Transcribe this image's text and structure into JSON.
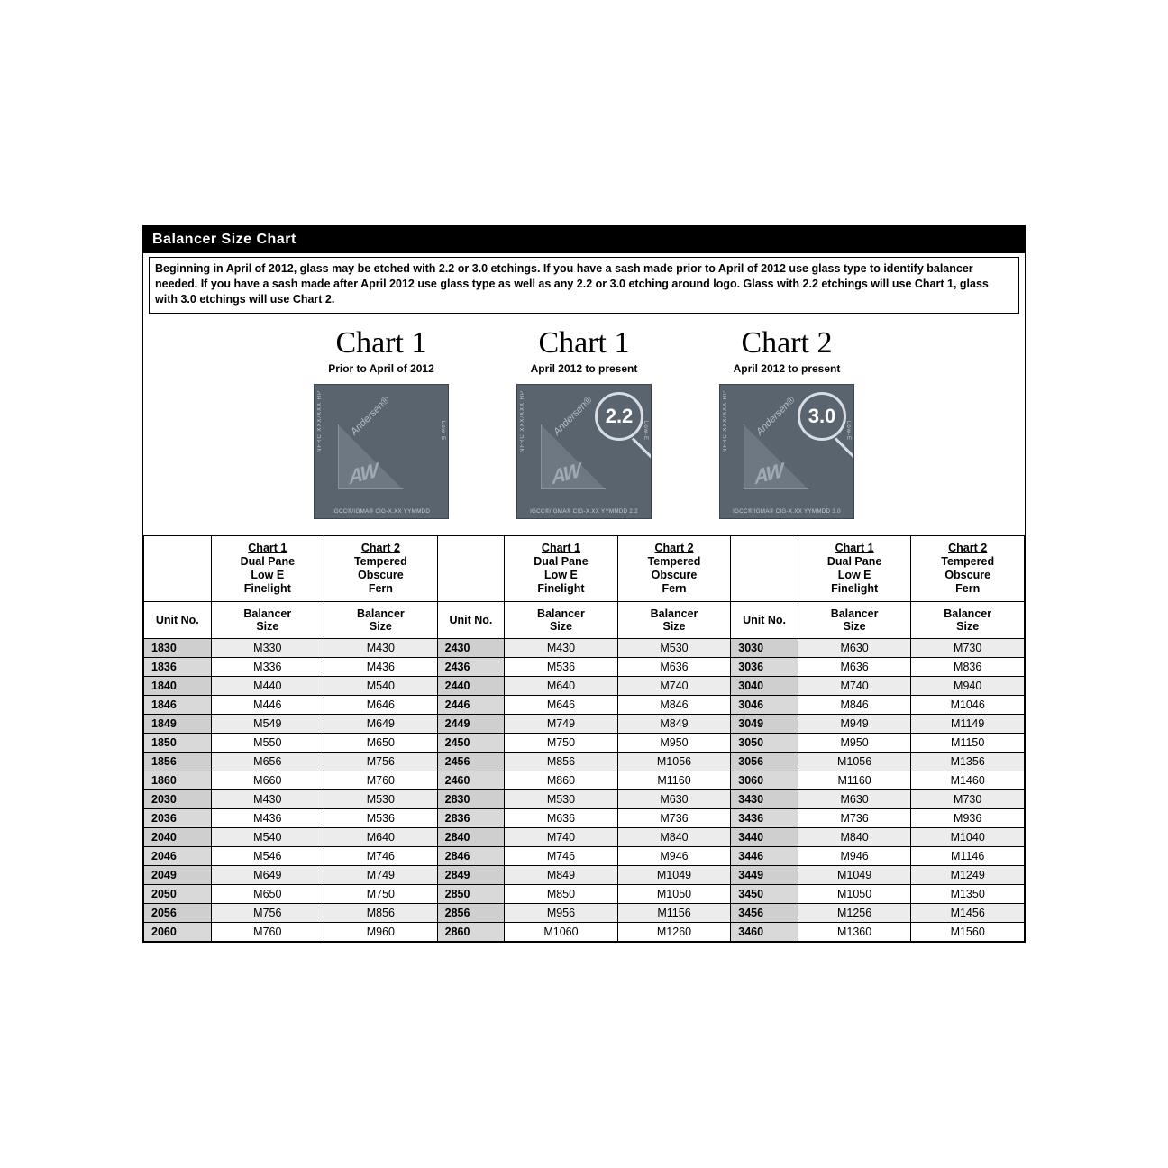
{
  "title": "Balancer Size Chart",
  "intro": "Beginning in April of 2012, glass may be etched with 2.2 or 3.0 etchings.  If you have a sash made prior to April of 2012 use glass type to identify balancer needed.  If you have a sash made after April 2012 use glass type as well as any 2.2 or 3.0 etching around logo. Glass with 2.2 etchings will use Chart 1, glass with 3.0 etchings will use Chart 2.",
  "charts": [
    {
      "title": "Chart 1",
      "sub": "Prior to April of 2012",
      "etch": "",
      "bottom": "IGCC®/IGMA® CIG-X.XX YYMMDD"
    },
    {
      "title": "Chart 1",
      "sub": "April 2012 to present",
      "etch": "2.2",
      "bottom": "IGCC®/IGMA® CIG-X.XX YYMMDD 2.2"
    },
    {
      "title": "Chart 2",
      "sub": "April 2012 to present",
      "etch": "3.0",
      "bottom": "IGCC®/IGMA® CIG-X.XX YYMMDD 3.0"
    }
  ],
  "logo_side1": "NFRC XXX/XXX HP",
  "logo_side2": "Low-E",
  "logo_brand": "Andersen®",
  "logo_aw": "AW",
  "headers": {
    "chart1_label": "Chart 1",
    "chart2_label": "Chart 2",
    "chart1_lines": [
      "Dual Pane",
      "Low E",
      "Finelight"
    ],
    "chart2_lines": [
      "Tempered",
      "Obscure",
      "Fern"
    ],
    "unit": "Unit No.",
    "balancer_l1": "Balancer",
    "balancer_l2": "Size"
  },
  "rows": [
    {
      "g": [
        [
          "1830",
          "M330",
          "M430"
        ],
        [
          "2430",
          "M430",
          "M530"
        ],
        [
          "3030",
          "M630",
          "M730"
        ]
      ]
    },
    {
      "g": [
        [
          "1836",
          "M336",
          "M436"
        ],
        [
          "2436",
          "M536",
          "M636"
        ],
        [
          "3036",
          "M636",
          "M836"
        ]
      ]
    },
    {
      "g": [
        [
          "1840",
          "M440",
          "M540"
        ],
        [
          "2440",
          "M640",
          "M740"
        ],
        [
          "3040",
          "M740",
          "M940"
        ]
      ]
    },
    {
      "g": [
        [
          "1846",
          "M446",
          "M646"
        ],
        [
          "2446",
          "M646",
          "M846"
        ],
        [
          "3046",
          "M846",
          "M1046"
        ]
      ]
    },
    {
      "g": [
        [
          "1849",
          "M549",
          "M649"
        ],
        [
          "2449",
          "M749",
          "M849"
        ],
        [
          "3049",
          "M949",
          "M1149"
        ]
      ]
    },
    {
      "g": [
        [
          "1850",
          "M550",
          "M650"
        ],
        [
          "2450",
          "M750",
          "M950"
        ],
        [
          "3050",
          "M950",
          "M1150"
        ]
      ]
    },
    {
      "g": [
        [
          "1856",
          "M656",
          "M756"
        ],
        [
          "2456",
          "M856",
          "M1056"
        ],
        [
          "3056",
          "M1056",
          "M1356"
        ]
      ]
    },
    {
      "g": [
        [
          "1860",
          "M660",
          "M760"
        ],
        [
          "2460",
          "M860",
          "M1160"
        ],
        [
          "3060",
          "M1160",
          "M1460"
        ]
      ]
    },
    {
      "g": [
        [
          "2030",
          "M430",
          "M530"
        ],
        [
          "2830",
          "M530",
          "M630"
        ],
        [
          "3430",
          "M630",
          "M730"
        ]
      ]
    },
    {
      "g": [
        [
          "2036",
          "M436",
          "M536"
        ],
        [
          "2836",
          "M636",
          "M736"
        ],
        [
          "3436",
          "M736",
          "M936"
        ]
      ]
    },
    {
      "g": [
        [
          "2040",
          "M540",
          "M640"
        ],
        [
          "2840",
          "M740",
          "M840"
        ],
        [
          "3440",
          "M840",
          "M1040"
        ]
      ]
    },
    {
      "g": [
        [
          "2046",
          "M546",
          "M746"
        ],
        [
          "2846",
          "M746",
          "M946"
        ],
        [
          "3446",
          "M946",
          "M1146"
        ]
      ]
    },
    {
      "g": [
        [
          "2049",
          "M649",
          "M749"
        ],
        [
          "2849",
          "M849",
          "M1049"
        ],
        [
          "3449",
          "M1049",
          "M1249"
        ]
      ]
    },
    {
      "g": [
        [
          "2050",
          "M650",
          "M750"
        ],
        [
          "2850",
          "M850",
          "M1050"
        ],
        [
          "3450",
          "M1050",
          "M1350"
        ]
      ]
    },
    {
      "g": [
        [
          "2056",
          "M756",
          "M856"
        ],
        [
          "2856",
          "M956",
          "M1156"
        ],
        [
          "3456",
          "M1256",
          "M1456"
        ]
      ]
    },
    {
      "g": [
        [
          "2060",
          "M760",
          "M960"
        ],
        [
          "2860",
          "M1060",
          "M1260"
        ],
        [
          "3460",
          "M1360",
          "M1560"
        ]
      ]
    }
  ],
  "colors": {
    "title_bg": "#000000",
    "title_fg": "#ffffff",
    "border": "#000000",
    "unit_bg": "#d9d9d9",
    "row_shade": "#ececec",
    "logo_bg": "#5a646f"
  }
}
